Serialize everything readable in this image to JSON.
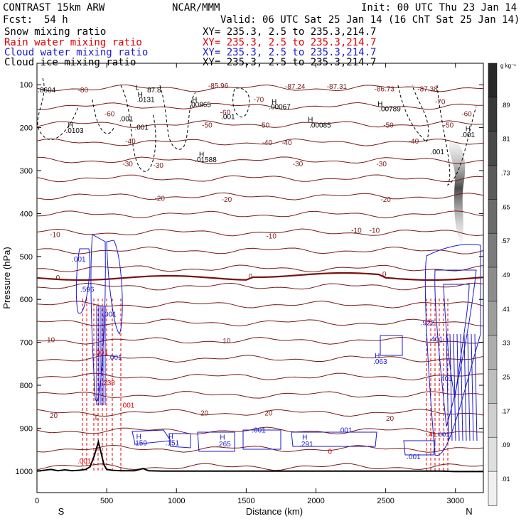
{
  "header": {
    "model": "CONTRAST 15km ARW",
    "center": "NCAR/MMM",
    "init": "Init: 00 UTC Thu 23 Jan 14",
    "fcst_label": "Fcst:",
    "fcst_value": "54 h",
    "valid": "Valid: 06 UTC Sat 25 Jan 14 (16 ChT Sat 25 Jan 14)"
  },
  "fields": [
    {
      "name": "Snow mixing ratio",
      "xy": "XY= 235.3,  2.5 to 235.3,214.7",
      "color": "#000000"
    },
    {
      "name": "Rain water mixing ratio",
      "xy": "XY= 235.3,  2.5 to 235.3,214.7",
      "color": "#e00000"
    },
    {
      "name": "Cloud water mixing ratio",
      "xy": "XY= 235.3,  2.5 to 235.3,214.7",
      "color": "#1a1ad0"
    },
    {
      "name": "Cloud ice mixing ratio",
      "xy": "XY= 235.3,  2.5 to 235.3,214.7",
      "color": "#000000"
    }
  ],
  "chart_data": {
    "type": "contour",
    "xlabel": "Distance (km)",
    "ylabel": "Pressure (hPa)",
    "x_ticks": [
      0,
      500,
      1000,
      1500,
      2000,
      2500,
      3000
    ],
    "xlim": [
      0,
      3200
    ],
    "y_ticks": [
      100,
      200,
      300,
      400,
      500,
      600,
      700,
      800,
      900,
      1000
    ],
    "ylim": [
      1050,
      50
    ],
    "x_end_labels": {
      "left": "S",
      "right": "N"
    },
    "colorbar": {
      "unit": "g kg⁻¹",
      "ticks": [
        ".89",
        ".81",
        ".73",
        ".65",
        ".57",
        ".49",
        ".41",
        ".33",
        ".25",
        ".17",
        ".09",
        ".01"
      ]
    },
    "temperature_contour_labels": [
      {
        "x": 1850,
        "p": 110,
        "text": "-87.24"
      },
      {
        "x": 2150,
        "p": 110,
        "text": "-87.31"
      },
      {
        "x": 2490,
        "p": 115,
        "text": "-86.73"
      },
      {
        "x": 2800,
        "p": 115,
        "text": "-87.38"
      },
      {
        "x": 1300,
        "p": 108,
        "text": "-85.96"
      },
      {
        "x": 330,
        "p": 118,
        "text": "-80"
      },
      {
        "x": 1590,
        "p": 140,
        "text": "-70"
      },
      {
        "x": 2890,
        "p": 145,
        "text": "-70"
      },
      {
        "x": 520,
        "p": 173,
        "text": "-60"
      },
      {
        "x": 1350,
        "p": 170,
        "text": "-60"
      },
      {
        "x": 3080,
        "p": 173,
        "text": "-60"
      },
      {
        "x": 1220,
        "p": 200,
        "text": "-50"
      },
      {
        "x": 1630,
        "p": 200,
        "text": "-50"
      },
      {
        "x": 2520,
        "p": 200,
        "text": "-50"
      },
      {
        "x": 2950,
        "p": 200,
        "text": "-50"
      },
      {
        "x": 670,
        "p": 237,
        "text": "-40"
      },
      {
        "x": 1650,
        "p": 240,
        "text": "-40"
      },
      {
        "x": 1790,
        "p": 240,
        "text": "-40"
      },
      {
        "x": 2700,
        "p": 237,
        "text": "-40"
      },
      {
        "x": 650,
        "p": 290,
        "text": "-30"
      },
      {
        "x": 870,
        "p": 293,
        "text": "-30"
      },
      {
        "x": 1870,
        "p": 290,
        "text": "-30"
      },
      {
        "x": 2470,
        "p": 290,
        "text": "-30"
      },
      {
        "x": 880,
        "p": 370,
        "text": "-20"
      },
      {
        "x": 1360,
        "p": 373,
        "text": "-20"
      },
      {
        "x": 2500,
        "p": 373,
        "text": "-20"
      },
      {
        "x": 130,
        "p": 455,
        "text": "-10"
      },
      {
        "x": 1680,
        "p": 458,
        "text": "-10"
      },
      {
        "x": 2290,
        "p": 445,
        "text": "-10"
      },
      {
        "x": 2420,
        "p": 445,
        "text": "-10"
      },
      {
        "x": 150,
        "p": 555,
        "text": "0"
      },
      {
        "x": 1530,
        "p": 552,
        "text": "0"
      },
      {
        "x": 2490,
        "p": 547,
        "text": "0"
      },
      {
        "x": 100,
        "p": 700,
        "text": "10"
      },
      {
        "x": 1360,
        "p": 702,
        "text": "10"
      },
      {
        "x": 120,
        "p": 876,
        "text": "20"
      },
      {
        "x": 1200,
        "p": 870,
        "text": "20"
      },
      {
        "x": 1660,
        "p": 870,
        "text": "20"
      },
      {
        "x": 2530,
        "p": 883,
        "text": "20"
      }
    ],
    "ice_labels": [
      {
        "x": 70,
        "p": 118,
        "text": ".8604"
      },
      {
        "x": 720,
        "p": 112,
        "text": "L"
      },
      {
        "x": 840,
        "p": 118,
        "text": "87.8"
      },
      {
        "x": 740,
        "p": 128,
        "text": "H"
      },
      {
        "x": 780,
        "p": 140,
        "text": ".0131"
      },
      {
        "x": 1130,
        "p": 140,
        "text": "H"
      },
      {
        "x": 1170,
        "p": 152,
        "text": ".00865"
      },
      {
        "x": 1700,
        "p": 145,
        "text": "H"
      },
      {
        "x": 1740,
        "p": 157,
        "text": ".00067"
      },
      {
        "x": 1370,
        "p": 180,
        "text": ".001"
      },
      {
        "x": 640,
        "p": 185,
        "text": ".001"
      },
      {
        "x": 2460,
        "p": 150,
        "text": "H"
      },
      {
        "x": 2530,
        "p": 162,
        "text": ".00789"
      },
      {
        "x": 1960,
        "p": 187,
        "text": "H"
      },
      {
        "x": 2030,
        "p": 200,
        "text": ".00085"
      },
      {
        "x": 240,
        "p": 200,
        "text": "H"
      },
      {
        "x": 270,
        "p": 212,
        "text": ".0103"
      },
      {
        "x": 750,
        "p": 205,
        "text": ".001"
      },
      {
        "x": 1180,
        "p": 268,
        "text": "H"
      },
      {
        "x": 1210,
        "p": 280,
        "text": ".01588"
      },
      {
        "x": 2870,
        "p": 262,
        "text": ".001"
      },
      {
        "x": 3090,
        "p": 208,
        "text": "H"
      },
      {
        "x": 3090,
        "p": 222,
        "text": ".001"
      }
    ],
    "cloud_water_labels": [
      {
        "x": 300,
        "p": 512,
        "text": ".001"
      },
      {
        "x": 360,
        "p": 582,
        "text": ".596"
      },
      {
        "x": 520,
        "p": 640,
        "text": ".001"
      },
      {
        "x": 560,
        "p": 740,
        "text": ".001"
      },
      {
        "x": 2440,
        "p": 737,
        "text": "H"
      },
      {
        "x": 2460,
        "p": 750,
        "text": ".063"
      },
      {
        "x": 2800,
        "p": 660,
        "text": ".922"
      },
      {
        "x": 2860,
        "p": 698,
        "text": ".401"
      },
      {
        "x": 2930,
        "p": 790,
        "text": ".401"
      },
      {
        "x": 730,
        "p": 925,
        "text": "H"
      },
      {
        "x": 740,
        "p": 940,
        "text": ".159"
      },
      {
        "x": 960,
        "p": 925,
        "text": "H"
      },
      {
        "x": 970,
        "p": 940,
        "text": ".151"
      },
      {
        "x": 1330,
        "p": 927,
        "text": "H"
      },
      {
        "x": 1340,
        "p": 942,
        "text": ".265"
      },
      {
        "x": 1590,
        "p": 910,
        "text": ".001"
      },
      {
        "x": 1920,
        "p": 927,
        "text": "H"
      },
      {
        "x": 1930,
        "p": 942,
        "text": ".291"
      },
      {
        "x": 2210,
        "p": 910,
        "text": ".001"
      },
      {
        "x": 2700,
        "p": 972,
        "text": ".001"
      },
      {
        "x": 2910,
        "p": 920,
        "text": ".001"
      }
    ],
    "rain_labels": [
      {
        "x": 430,
        "p": 880,
        "text": "L"
      },
      {
        "x": 510,
        "p": 800,
        "text": ".238"
      },
      {
        "x": 460,
        "p": 730,
        "text": ".001"
      },
      {
        "x": 650,
        "p": 852,
        "text": ".001"
      },
      {
        "x": 340,
        "p": 982,
        "text": ".001"
      },
      {
        "x": 2100,
        "p": 960,
        "text": "0"
      },
      {
        "x": 2800,
        "p": 657,
        "text": "H"
      },
      {
        "x": 2830,
        "p": 920,
        "text": ".41"
      }
    ],
    "terrain_km": [
      0,
      50,
      100,
      150,
      200,
      250,
      300,
      350,
      380,
      410,
      440,
      460,
      480,
      500,
      540,
      600,
      700,
      760,
      800,
      900,
      1000,
      1500,
      2000,
      2500,
      2900,
      3000,
      3100,
      3200
    ],
    "terrain_hpa": [
      1000,
      998,
      996,
      999,
      997,
      999,
      998,
      996,
      990,
      965,
      932,
      958,
      985,
      996,
      998,
      999,
      999,
      994,
      999,
      1000,
      1000,
      1000,
      1000,
      1000,
      1000,
      1001,
      1001,
      1001
    ]
  }
}
